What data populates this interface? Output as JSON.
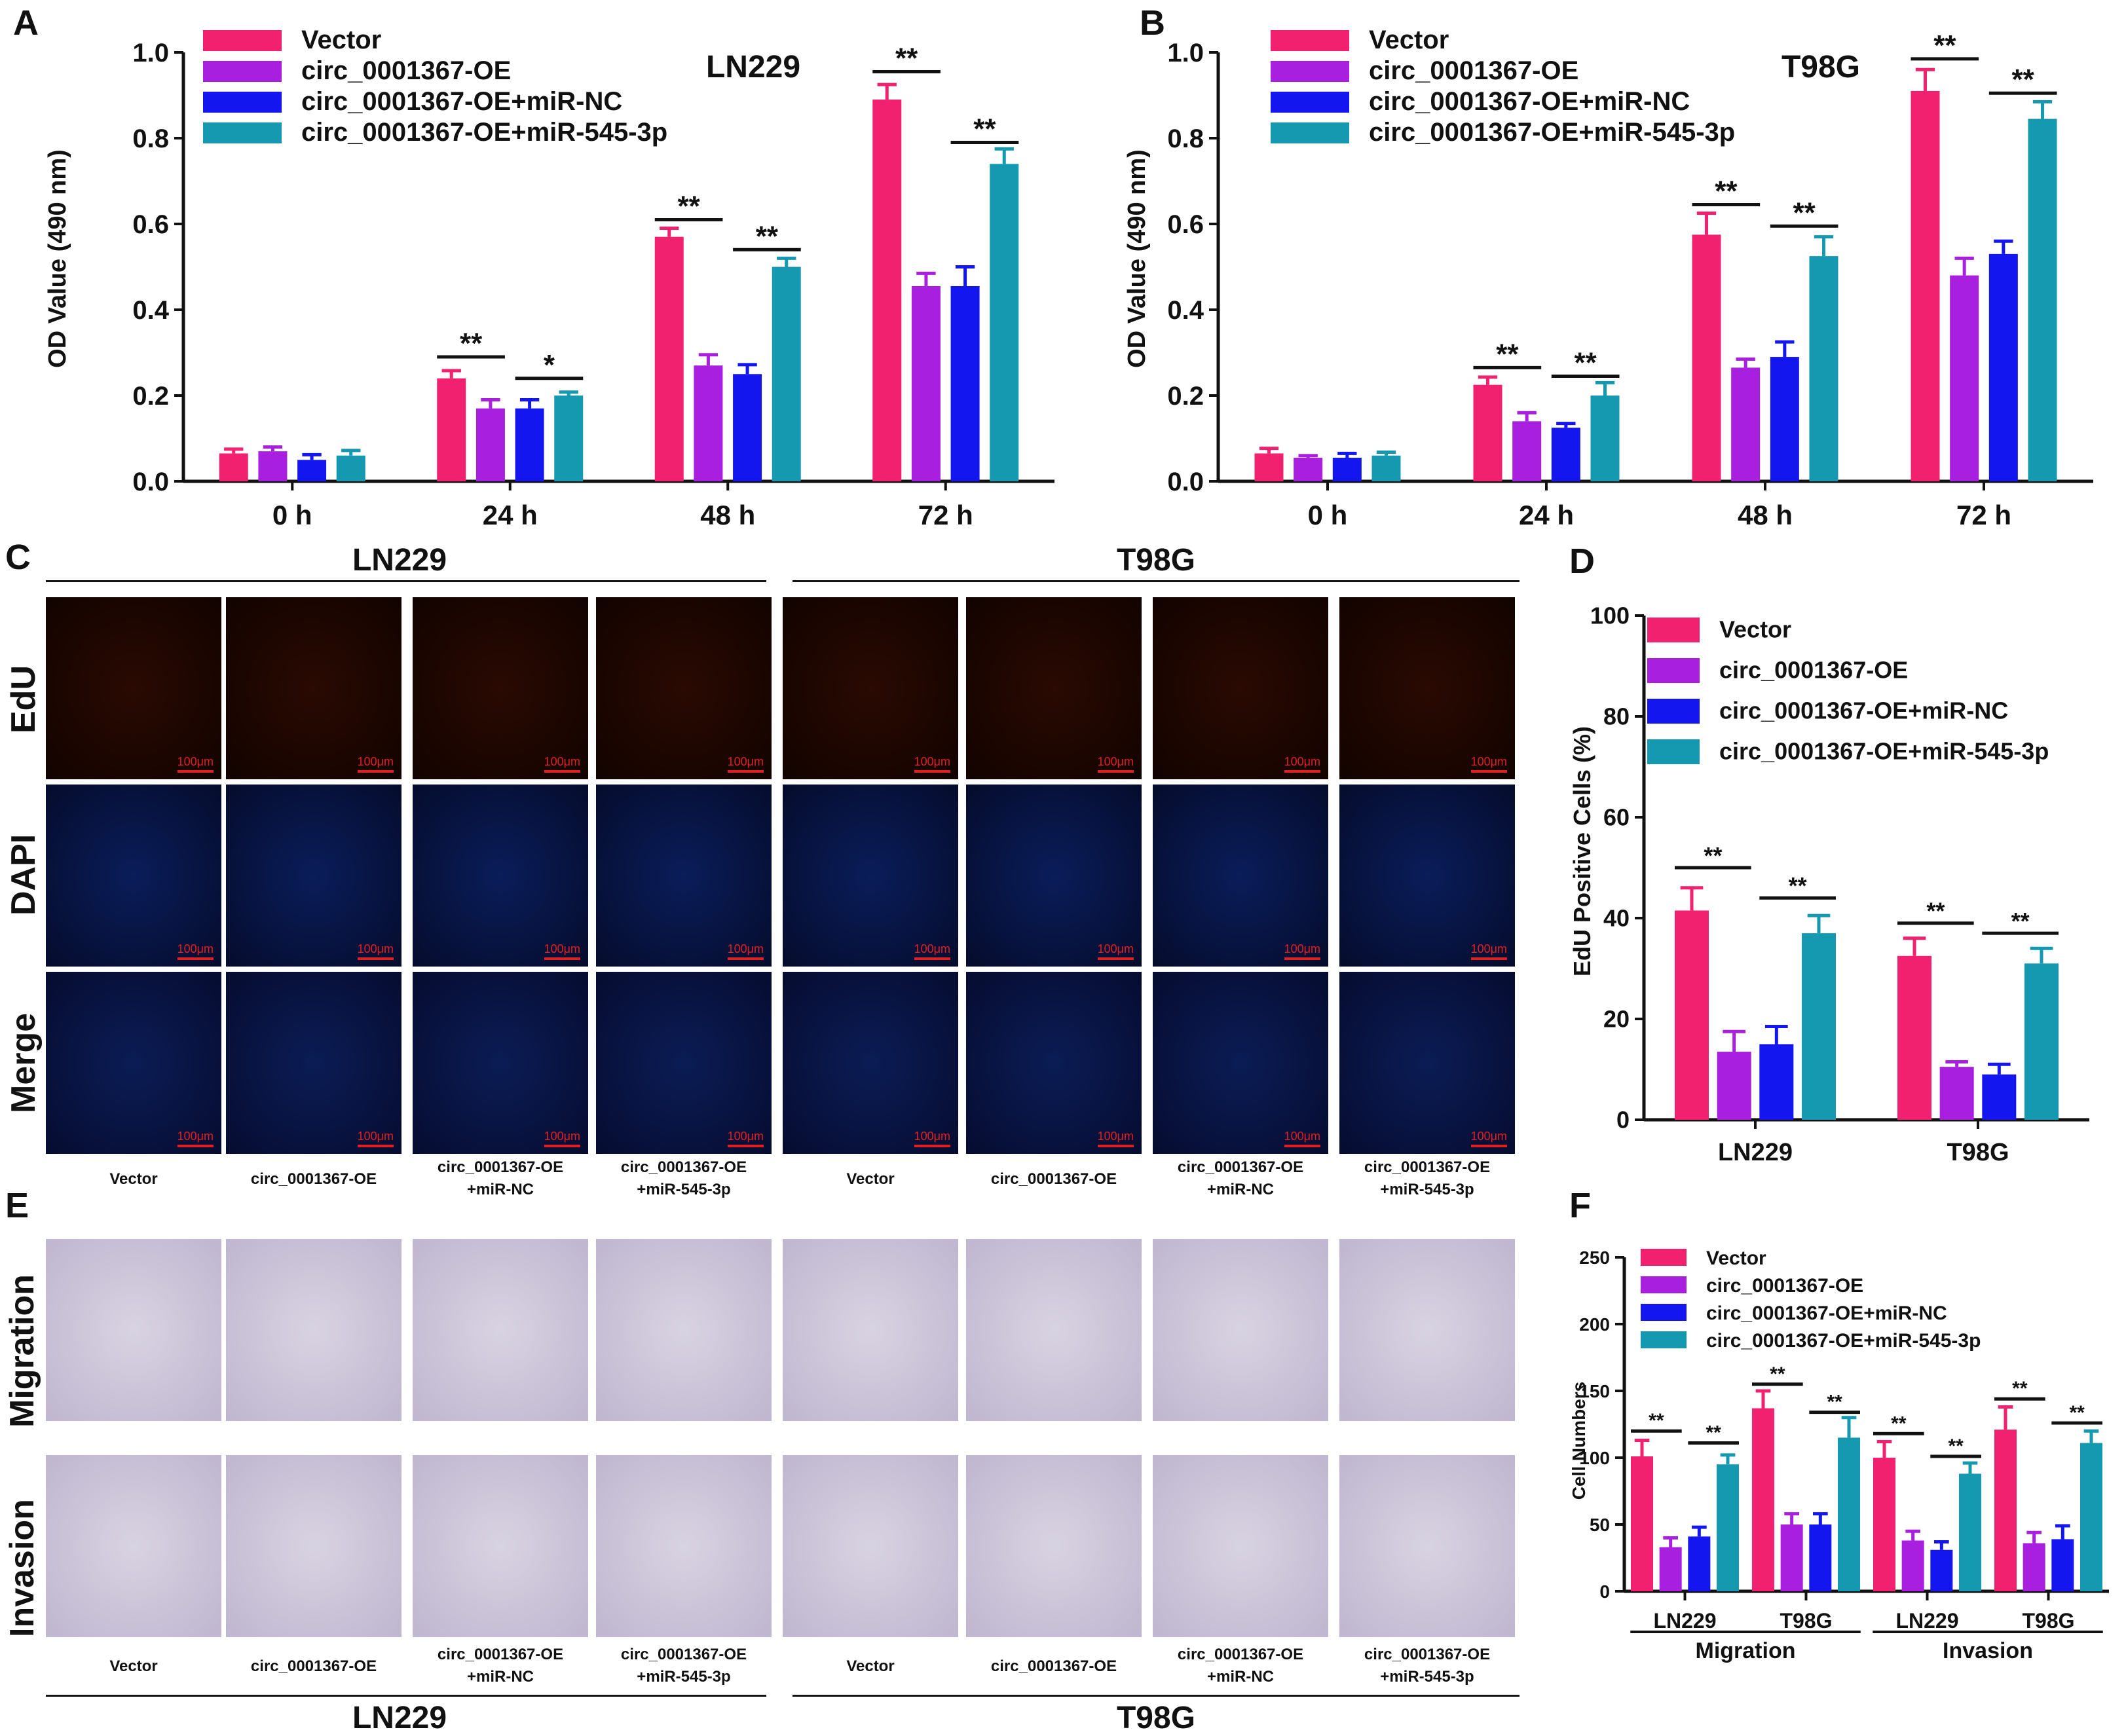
{
  "colors": {
    "vector": "#f2216f",
    "oe": "#a81fe0",
    "oe_nc": "#1416f0",
    "oe_545": "#1499b0"
  },
  "panels": {
    "A": "A",
    "B": "B",
    "C": "C",
    "D": "D",
    "E": "E",
    "F": "F"
  },
  "legend_labels": [
    "Vector",
    "circ_0001367-OE",
    "circ_0001367-OE+miR-NC",
    "circ_0001367-OE+miR-545-3p"
  ],
  "microscopy": {
    "C": {
      "groups": [
        "LN229",
        "T98G"
      ],
      "rows": [
        "EdU",
        "DAPI",
        "Merge"
      ],
      "columns": [
        {
          "l1": "Vector",
          "l2": ""
        },
        {
          "l1": "circ_0001367-OE",
          "l2": ""
        },
        {
          "l1": "circ_0001367-OE",
          "l2": "+miR-NC"
        },
        {
          "l1": "circ_0001367-OE",
          "l2": "+miR-545-3p"
        },
        {
          "l1": "Vector",
          "l2": ""
        },
        {
          "l1": "circ_0001367-OE",
          "l2": ""
        },
        {
          "l1": "circ_0001367-OE",
          "l2": "+miR-NC"
        },
        {
          "l1": "circ_0001367-OE",
          "l2": "+miR-545-3p"
        }
      ],
      "scale_bar": "100μm"
    },
    "E": {
      "groups": [
        "LN229",
        "T98G"
      ],
      "rows": [
        "Migration",
        "Invasion"
      ],
      "columns": [
        {
          "l1": "Vector",
          "l2": ""
        },
        {
          "l1": "circ_0001367-OE",
          "l2": ""
        },
        {
          "l1": "circ_0001367-OE",
          "l2": "+miR-NC"
        },
        {
          "l1": "circ_0001367-OE",
          "l2": "+miR-545-3p"
        },
        {
          "l1": "Vector",
          "l2": ""
        },
        {
          "l1": "circ_0001367-OE",
          "l2": ""
        },
        {
          "l1": "circ_0001367-OE",
          "l2": "+miR-NC"
        },
        {
          "l1": "circ_0001367-OE",
          "l2": "+miR-545-3p"
        }
      ]
    }
  },
  "chart_data": [
    {
      "id": "A",
      "type": "bar",
      "title": "LN229",
      "ylabel": "OD Value (490 nm)",
      "xlabel": "",
      "ylim": [
        0,
        1.0
      ],
      "yticks": [
        "0.0",
        "0.2",
        "0.4",
        "0.6",
        "0.8",
        "1.0"
      ],
      "categories": [
        "0 h",
        "24 h",
        "48 h",
        "72 h"
      ],
      "series": [
        {
          "name": "Vector",
          "values": [
            0.065,
            0.24,
            0.57,
            0.89
          ],
          "errors": [
            0.01,
            0.018,
            0.02,
            0.035
          ]
        },
        {
          "name": "circ_0001367-OE",
          "values": [
            0.07,
            0.17,
            0.27,
            0.455
          ],
          "errors": [
            0.01,
            0.02,
            0.025,
            0.03
          ]
        },
        {
          "name": "circ_0001367-OE+miR-NC",
          "values": [
            0.05,
            0.17,
            0.25,
            0.455
          ],
          "errors": [
            0.012,
            0.02,
            0.022,
            0.045
          ]
        },
        {
          "name": "circ_0001367-OE+miR-545-3p",
          "values": [
            0.06,
            0.2,
            0.5,
            0.74
          ],
          "errors": [
            0.012,
            0.008,
            0.02,
            0.035
          ]
        }
      ],
      "significance": [
        {
          "category": 1,
          "from": 0,
          "to": 1,
          "label": "**",
          "y": 0.29
        },
        {
          "category": 1,
          "from": 2,
          "to": 3,
          "label": "*",
          "y": 0.24
        },
        {
          "category": 2,
          "from": 0,
          "to": 1,
          "label": "**",
          "y": 0.61
        },
        {
          "category": 2,
          "from": 2,
          "to": 3,
          "label": "**",
          "y": 0.54
        },
        {
          "category": 3,
          "from": 0,
          "to": 1,
          "label": "**",
          "y": 0.955
        },
        {
          "category": 3,
          "from": 2,
          "to": 3,
          "label": "**",
          "y": 0.79
        }
      ]
    },
    {
      "id": "B",
      "type": "bar",
      "title": "T98G",
      "ylabel": "OD Value (490 nm)",
      "xlabel": "",
      "ylim": [
        0,
        1.0
      ],
      "yticks": [
        "0.0",
        "0.2",
        "0.4",
        "0.6",
        "0.8",
        "1.0"
      ],
      "categories": [
        "0 h",
        "24 h",
        "48 h",
        "72 h"
      ],
      "series": [
        {
          "name": "Vector",
          "values": [
            0.065,
            0.225,
            0.575,
            0.91
          ],
          "errors": [
            0.012,
            0.018,
            0.05,
            0.05
          ]
        },
        {
          "name": "circ_0001367-OE",
          "values": [
            0.055,
            0.14,
            0.265,
            0.48
          ],
          "errors": [
            0.005,
            0.02,
            0.02,
            0.04
          ]
        },
        {
          "name": "circ_0001367-OE+miR-NC",
          "values": [
            0.055,
            0.125,
            0.29,
            0.53
          ],
          "errors": [
            0.01,
            0.01,
            0.035,
            0.03
          ]
        },
        {
          "name": "circ_0001367-OE+miR-545-3p",
          "values": [
            0.06,
            0.2,
            0.525,
            0.845
          ],
          "errors": [
            0.008,
            0.03,
            0.045,
            0.04
          ]
        }
      ],
      "significance": [
        {
          "category": 1,
          "from": 0,
          "to": 1,
          "label": "**",
          "y": 0.265
        },
        {
          "category": 1,
          "from": 2,
          "to": 3,
          "label": "**",
          "y": 0.245
        },
        {
          "category": 2,
          "from": 0,
          "to": 1,
          "label": "**",
          "y": 0.645
        },
        {
          "category": 2,
          "from": 2,
          "to": 3,
          "label": "**",
          "y": 0.595
        },
        {
          "category": 3,
          "from": 0,
          "to": 1,
          "label": "**",
          "y": 0.985
        },
        {
          "category": 3,
          "from": 2,
          "to": 3,
          "label": "**",
          "y": 0.905
        }
      ]
    },
    {
      "id": "D",
      "type": "bar",
      "title": "",
      "ylabel": "EdU Positive Cells (%)",
      "xlabel": "",
      "ylim": [
        0,
        100
      ],
      "yticks": [
        "0",
        "20",
        "40",
        "60",
        "80",
        "100"
      ],
      "categories": [
        "LN229",
        "T98G"
      ],
      "series": [
        {
          "name": "Vector",
          "values": [
            41.5,
            32.5
          ],
          "errors": [
            4.5,
            3.5
          ]
        },
        {
          "name": "circ_0001367-OE",
          "values": [
            13.5,
            10.5
          ],
          "errors": [
            4,
            1
          ]
        },
        {
          "name": "circ_0001367-OE+miR-NC",
          "values": [
            15,
            9
          ],
          "errors": [
            3.5,
            2
          ]
        },
        {
          "name": "circ_0001367-OE+miR-545-3p",
          "values": [
            37,
            31
          ],
          "errors": [
            3.5,
            3
          ]
        }
      ],
      "significance": [
        {
          "category": 0,
          "from": 0,
          "to": 1,
          "label": "**",
          "y": 50
        },
        {
          "category": 0,
          "from": 2,
          "to": 3,
          "label": "**",
          "y": 44
        },
        {
          "category": 1,
          "from": 0,
          "to": 1,
          "label": "**",
          "y": 39
        },
        {
          "category": 1,
          "from": 2,
          "to": 3,
          "label": "**",
          "y": 37
        }
      ]
    },
    {
      "id": "F",
      "type": "bar",
      "title": "",
      "ylabel": "Cell Numbers",
      "xlabel": "",
      "ylim": [
        0,
        250
      ],
      "yticks": [
        "0",
        "50",
        "100",
        "150",
        "200",
        "250"
      ],
      "categories": [
        "LN229",
        "T98G",
        "LN229",
        "T98G"
      ],
      "groups": [
        "Migration",
        "Invasion"
      ],
      "series": [
        {
          "name": "Vector",
          "values": [
            101,
            137,
            100,
            121
          ],
          "errors": [
            12,
            13,
            12,
            17
          ]
        },
        {
          "name": "circ_0001367-OE",
          "values": [
            33,
            50,
            38,
            36
          ],
          "errors": [
            7,
            8,
            7,
            8
          ]
        },
        {
          "name": "circ_0001367-OE+miR-NC",
          "values": [
            41,
            50,
            31,
            39
          ],
          "errors": [
            7,
            8,
            6,
            10
          ]
        },
        {
          "name": "circ_0001367-OE+miR-545-3p",
          "values": [
            95,
            115,
            88,
            111
          ],
          "errors": [
            7,
            15,
            8,
            9
          ]
        }
      ],
      "significance": [
        {
          "category": 0,
          "from": 0,
          "to": 1,
          "label": "**",
          "y": 120
        },
        {
          "category": 0,
          "from": 2,
          "to": 3,
          "label": "**",
          "y": 111
        },
        {
          "category": 1,
          "from": 0,
          "to": 1,
          "label": "**",
          "y": 155
        },
        {
          "category": 1,
          "from": 2,
          "to": 3,
          "label": "**",
          "y": 134
        },
        {
          "category": 2,
          "from": 0,
          "to": 1,
          "label": "**",
          "y": 118
        },
        {
          "category": 2,
          "from": 2,
          "to": 3,
          "label": "**",
          "y": 101
        },
        {
          "category": 3,
          "from": 0,
          "to": 1,
          "label": "**",
          "y": 144
        },
        {
          "category": 3,
          "from": 2,
          "to": 3,
          "label": "**",
          "y": 126
        }
      ]
    }
  ]
}
